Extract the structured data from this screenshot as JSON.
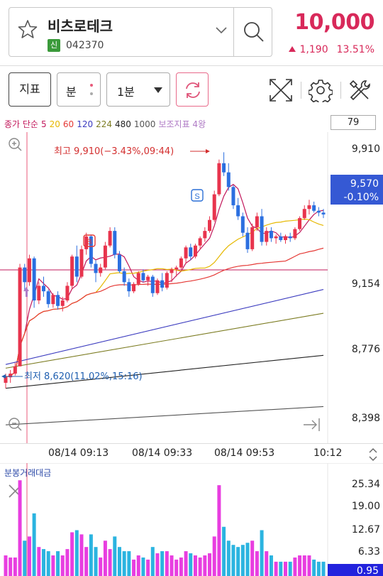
{
  "header": {
    "stock_name": "비츠로테크",
    "badge": "신",
    "stock_code": "042370",
    "price": "10,000",
    "change_amount": "1,190",
    "change_pct": "13.51%",
    "up_color": "#d8295a"
  },
  "toolbar": {
    "indicator_label": "지표",
    "unit_label": "분",
    "period_label": "1분"
  },
  "legend": {
    "items": [
      {
        "text": "종가 단순",
        "color": "#c2185b"
      },
      {
        "text": "5",
        "color": "#c2185b"
      },
      {
        "text": "20",
        "color": "#e6b800"
      },
      {
        "text": "60",
        "color": "#e53935"
      },
      {
        "text": "120",
        "color": "#3b3bbf"
      },
      {
        "text": "224",
        "color": "#7c7c22"
      },
      {
        "text": "480",
        "color": "#222222"
      },
      {
        "text": "1000",
        "color": "#555555"
      },
      {
        "text": "보조지표 4왕",
        "color": "#b07cc6"
      }
    ],
    "value_box": "79"
  },
  "price_axis": {
    "labels": [
      "9,910",
      "9,154",
      "8,776",
      "8,398"
    ],
    "current_price": "9,570",
    "current_change": "-0.10%"
  },
  "annotations": {
    "high": "최고 9,910(−3.43%,09:44)",
    "low": "최저 8,620(11.02%,15:16)",
    "buy_marker": "B",
    "sell_marker": "S"
  },
  "time_axis": {
    "labels": [
      "08/14 09:13",
      "08/14 09:33",
      "08/14 09:53",
      "10:12"
    ]
  },
  "volume": {
    "title": "분봉거래대금",
    "axis_labels": [
      "25.34",
      "19.00",
      "12.67",
      "6.33"
    ],
    "current": "0.95"
  },
  "chart_data": {
    "type": "candlestick",
    "ylim": [
      8320,
      10020
    ],
    "candles": [
      [
        8650,
        8700,
        8620,
        8680
      ],
      [
        8680,
        8720,
        8650,
        8700
      ],
      [
        8700,
        8760,
        8690,
        8740
      ],
      [
        8740,
        9300,
        8740,
        9280
      ],
      [
        9280,
        9300,
        9150,
        9200
      ],
      [
        9200,
        9350,
        9180,
        9330
      ],
      [
        9330,
        9340,
        9060,
        9100
      ],
      [
        9100,
        9200,
        9080,
        9180
      ],
      [
        9180,
        9230,
        9120,
        9150
      ],
      [
        9150,
        9160,
        9060,
        9080
      ],
      [
        9080,
        9140,
        9060,
        9130
      ],
      [
        9130,
        9150,
        9050,
        9070
      ],
      [
        9070,
        9120,
        9040,
        9100
      ],
      [
        9100,
        9200,
        9090,
        9180
      ],
      [
        9180,
        9350,
        9160,
        9340
      ],
      [
        9340,
        9400,
        9200,
        9230
      ],
      [
        9230,
        9400,
        9220,
        9380
      ],
      [
        9380,
        9470,
        9350,
        9450
      ],
      [
        9450,
        9460,
        9280,
        9300
      ],
      [
        9300,
        9320,
        9200,
        9250
      ],
      [
        9250,
        9300,
        9230,
        9280
      ],
      [
        9280,
        9420,
        9270,
        9400
      ],
      [
        9400,
        9500,
        9390,
        9480
      ],
      [
        9480,
        9500,
        9330,
        9350
      ],
      [
        9350,
        9370,
        9250,
        9260
      ],
      [
        9260,
        9280,
        9180,
        9200
      ],
      [
        9200,
        9220,
        9120,
        9150
      ],
      [
        9150,
        9200,
        9140,
        9190
      ],
      [
        9190,
        9260,
        9180,
        9250
      ],
      [
        9250,
        9270,
        9200,
        9210
      ],
      [
        9210,
        9240,
        9180,
        9230
      ],
      [
        9230,
        9240,
        9120,
        9140
      ],
      [
        9140,
        9220,
        9130,
        9210
      ],
      [
        9210,
        9250,
        9150,
        9170
      ],
      [
        9170,
        9260,
        9160,
        9250
      ],
      [
        9250,
        9280,
        9200,
        9270
      ],
      [
        9270,
        9290,
        9230,
        9280
      ],
      [
        9280,
        9340,
        9270,
        9330
      ],
      [
        9330,
        9400,
        9300,
        9390
      ],
      [
        9390,
        9410,
        9320,
        9340
      ],
      [
        9340,
        9410,
        9330,
        9400
      ],
      [
        9400,
        9450,
        9380,
        9440
      ],
      [
        9440,
        9500,
        9420,
        9480
      ],
      [
        9480,
        9560,
        9470,
        9540
      ],
      [
        9540,
        9700,
        9530,
        9680
      ],
      [
        9680,
        9870,
        9670,
        9850
      ],
      [
        9850,
        9910,
        9780,
        9800
      ],
      [
        9800,
        9850,
        9700,
        9720
      ],
      [
        9720,
        9730,
        9600,
        9620
      ],
      [
        9620,
        9660,
        9540,
        9560
      ],
      [
        9560,
        9580,
        9450,
        9470
      ],
      [
        9470,
        9500,
        9360,
        9380
      ],
      [
        9380,
        9520,
        9370,
        9500
      ],
      [
        9500,
        9580,
        9480,
        9560
      ],
      [
        9560,
        9600,
        9400,
        9420
      ],
      [
        9420,
        9500,
        9400,
        9480
      ],
      [
        9480,
        9500,
        9420,
        9440
      ],
      [
        9440,
        9460,
        9410,
        9450
      ],
      [
        9450,
        9470,
        9420,
        9430
      ],
      [
        9430,
        9460,
        9410,
        9450
      ],
      [
        9450,
        9470,
        9420,
        9440
      ],
      [
        9440,
        9500,
        9430,
        9490
      ],
      [
        9490,
        9560,
        9480,
        9550
      ],
      [
        9550,
        9620,
        9540,
        9600
      ],
      [
        9600,
        9650,
        9570,
        9620
      ],
      [
        9620,
        9640,
        9580,
        9590
      ],
      [
        9590,
        9610,
        9560,
        9580
      ],
      [
        9580,
        9600,
        9550,
        9570
      ]
    ]
  }
}
